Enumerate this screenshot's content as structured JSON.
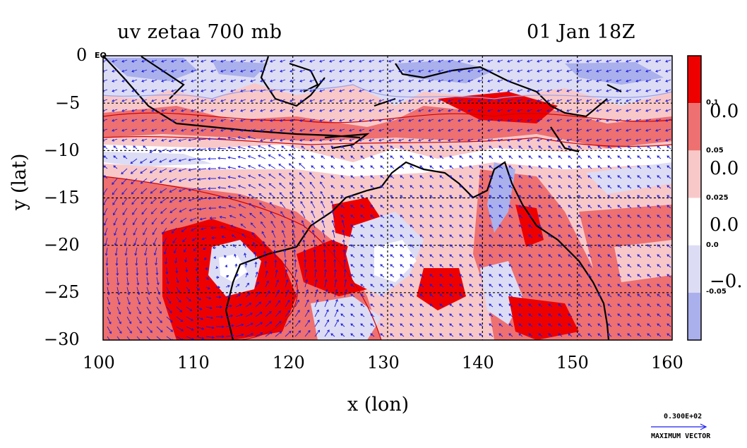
{
  "title": {
    "left": "uv zetaa 700 mb",
    "right": "01 Jan 18Z"
  },
  "axes": {
    "xlabel": "x (lon)",
    "ylabel": "y (lat)",
    "xticks": [
      "100",
      "110",
      "120",
      "130",
      "140",
      "150",
      "160"
    ],
    "yticks": [
      "0",
      "−5",
      "−10",
      "−15",
      "−20",
      "−25",
      "−30"
    ],
    "eq_label": "EQ",
    "xlim": [
      100,
      160
    ],
    "ylim": [
      -30,
      0
    ]
  },
  "colorbar": {
    "small_labels": [
      "0.1",
      "0.05",
      "0.025",
      "0.0",
      "-0.05"
    ],
    "big_labels": [
      "0.0",
      "0.0",
      "0.0",
      "−0."
    ],
    "colors": [
      "#ee0000",
      "#ee7070",
      "#f8c8c8",
      "#ffffff",
      "#dcdcf4",
      "#aab0ec"
    ]
  },
  "vector_key": {
    "value": "0.300E+02",
    "label": "MAXIMUM VECTOR",
    "color": "#2020ee"
  },
  "map_colors": {
    "strong_pos": "#ee0000",
    "pos": "#ee7070",
    "weak_pos": "#f8c8c8",
    "weak_neg": "#dcdcf4",
    "neg": "#aab0ec",
    "coast": "#000000",
    "contour": "#d00000",
    "vector": "#1a1ae0"
  }
}
